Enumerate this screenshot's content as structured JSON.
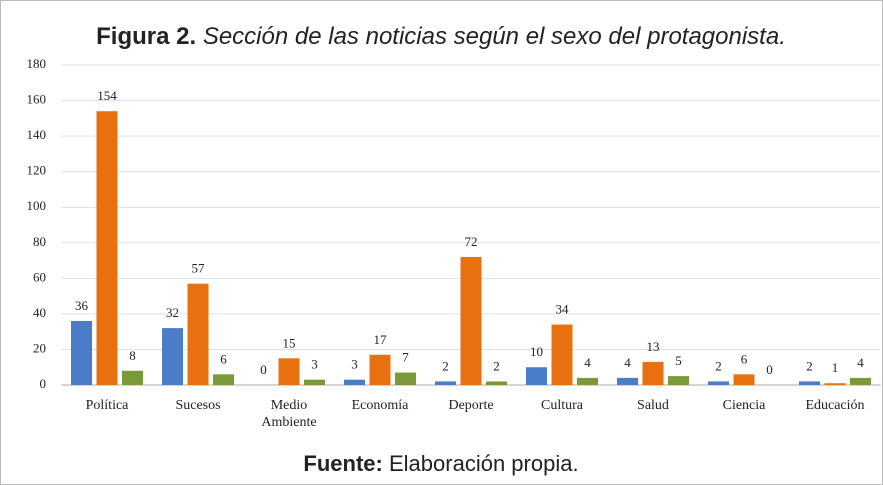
{
  "chart_data": {
    "type": "bar",
    "title_prefix": "Figura 2.",
    "title": "Sección de las noticias según el sexo del protagonista.",
    "source_prefix": "Fuente:",
    "source": "Elaboración propia.",
    "categories": [
      "Política",
      "Sucesos",
      "Medio Ambiente",
      "Economía",
      "Deporte",
      "Cultura",
      "Salud",
      "Ciencia",
      "Educación"
    ],
    "series": [
      {
        "color": "#4a7cc7",
        "values": [
          36,
          32,
          0,
          3,
          2,
          10,
          4,
          2,
          2
        ]
      },
      {
        "color": "#e8700f",
        "values": [
          154,
          57,
          15,
          17,
          72,
          34,
          13,
          6,
          1
        ]
      },
      {
        "color": "#7a9a3a",
        "values": [
          8,
          6,
          3,
          7,
          2,
          4,
          5,
          0,
          4
        ]
      }
    ],
    "ylim": [
      0,
      180
    ],
    "yticks": [
      0,
      20,
      40,
      60,
      80,
      100,
      120,
      140,
      160,
      180
    ],
    "grid": true
  }
}
